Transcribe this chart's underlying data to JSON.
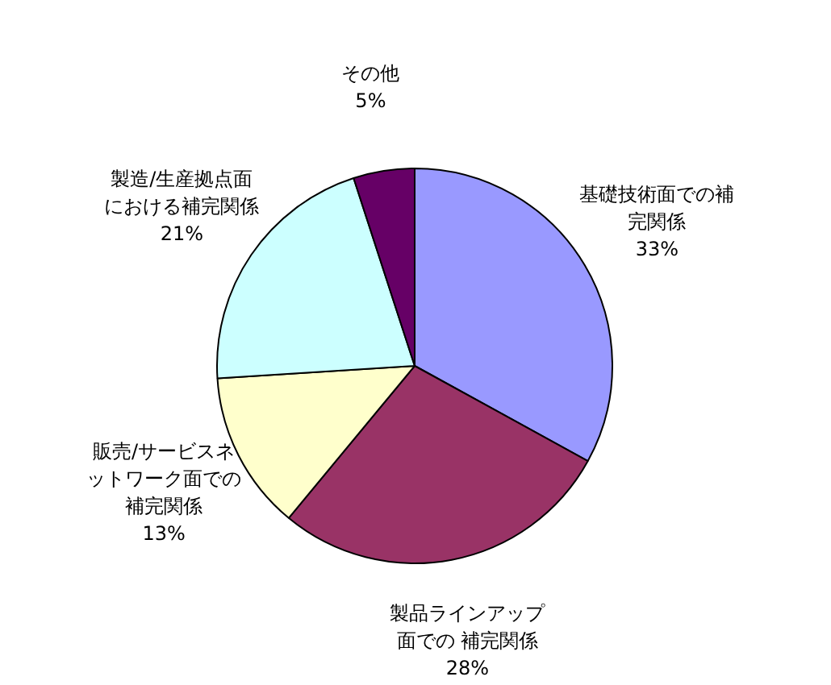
{
  "chart_data": {
    "type": "pie",
    "categories": [
      "基礎技術面での補完関係",
      "製品ラインアップ面での 補完関係",
      "販売/サービスネットワーク面での補完関係",
      "製造/生産拠点面における補完関係",
      "その他"
    ],
    "values": [
      33,
      28,
      13,
      21,
      5
    ],
    "colors": [
      "#9999ff",
      "#993366",
      "#ffffcc",
      "#ccffff",
      "#660066"
    ],
    "value_labels": [
      "33%",
      "28%",
      "13%",
      "21%",
      "5%"
    ],
    "legend": false
  }
}
